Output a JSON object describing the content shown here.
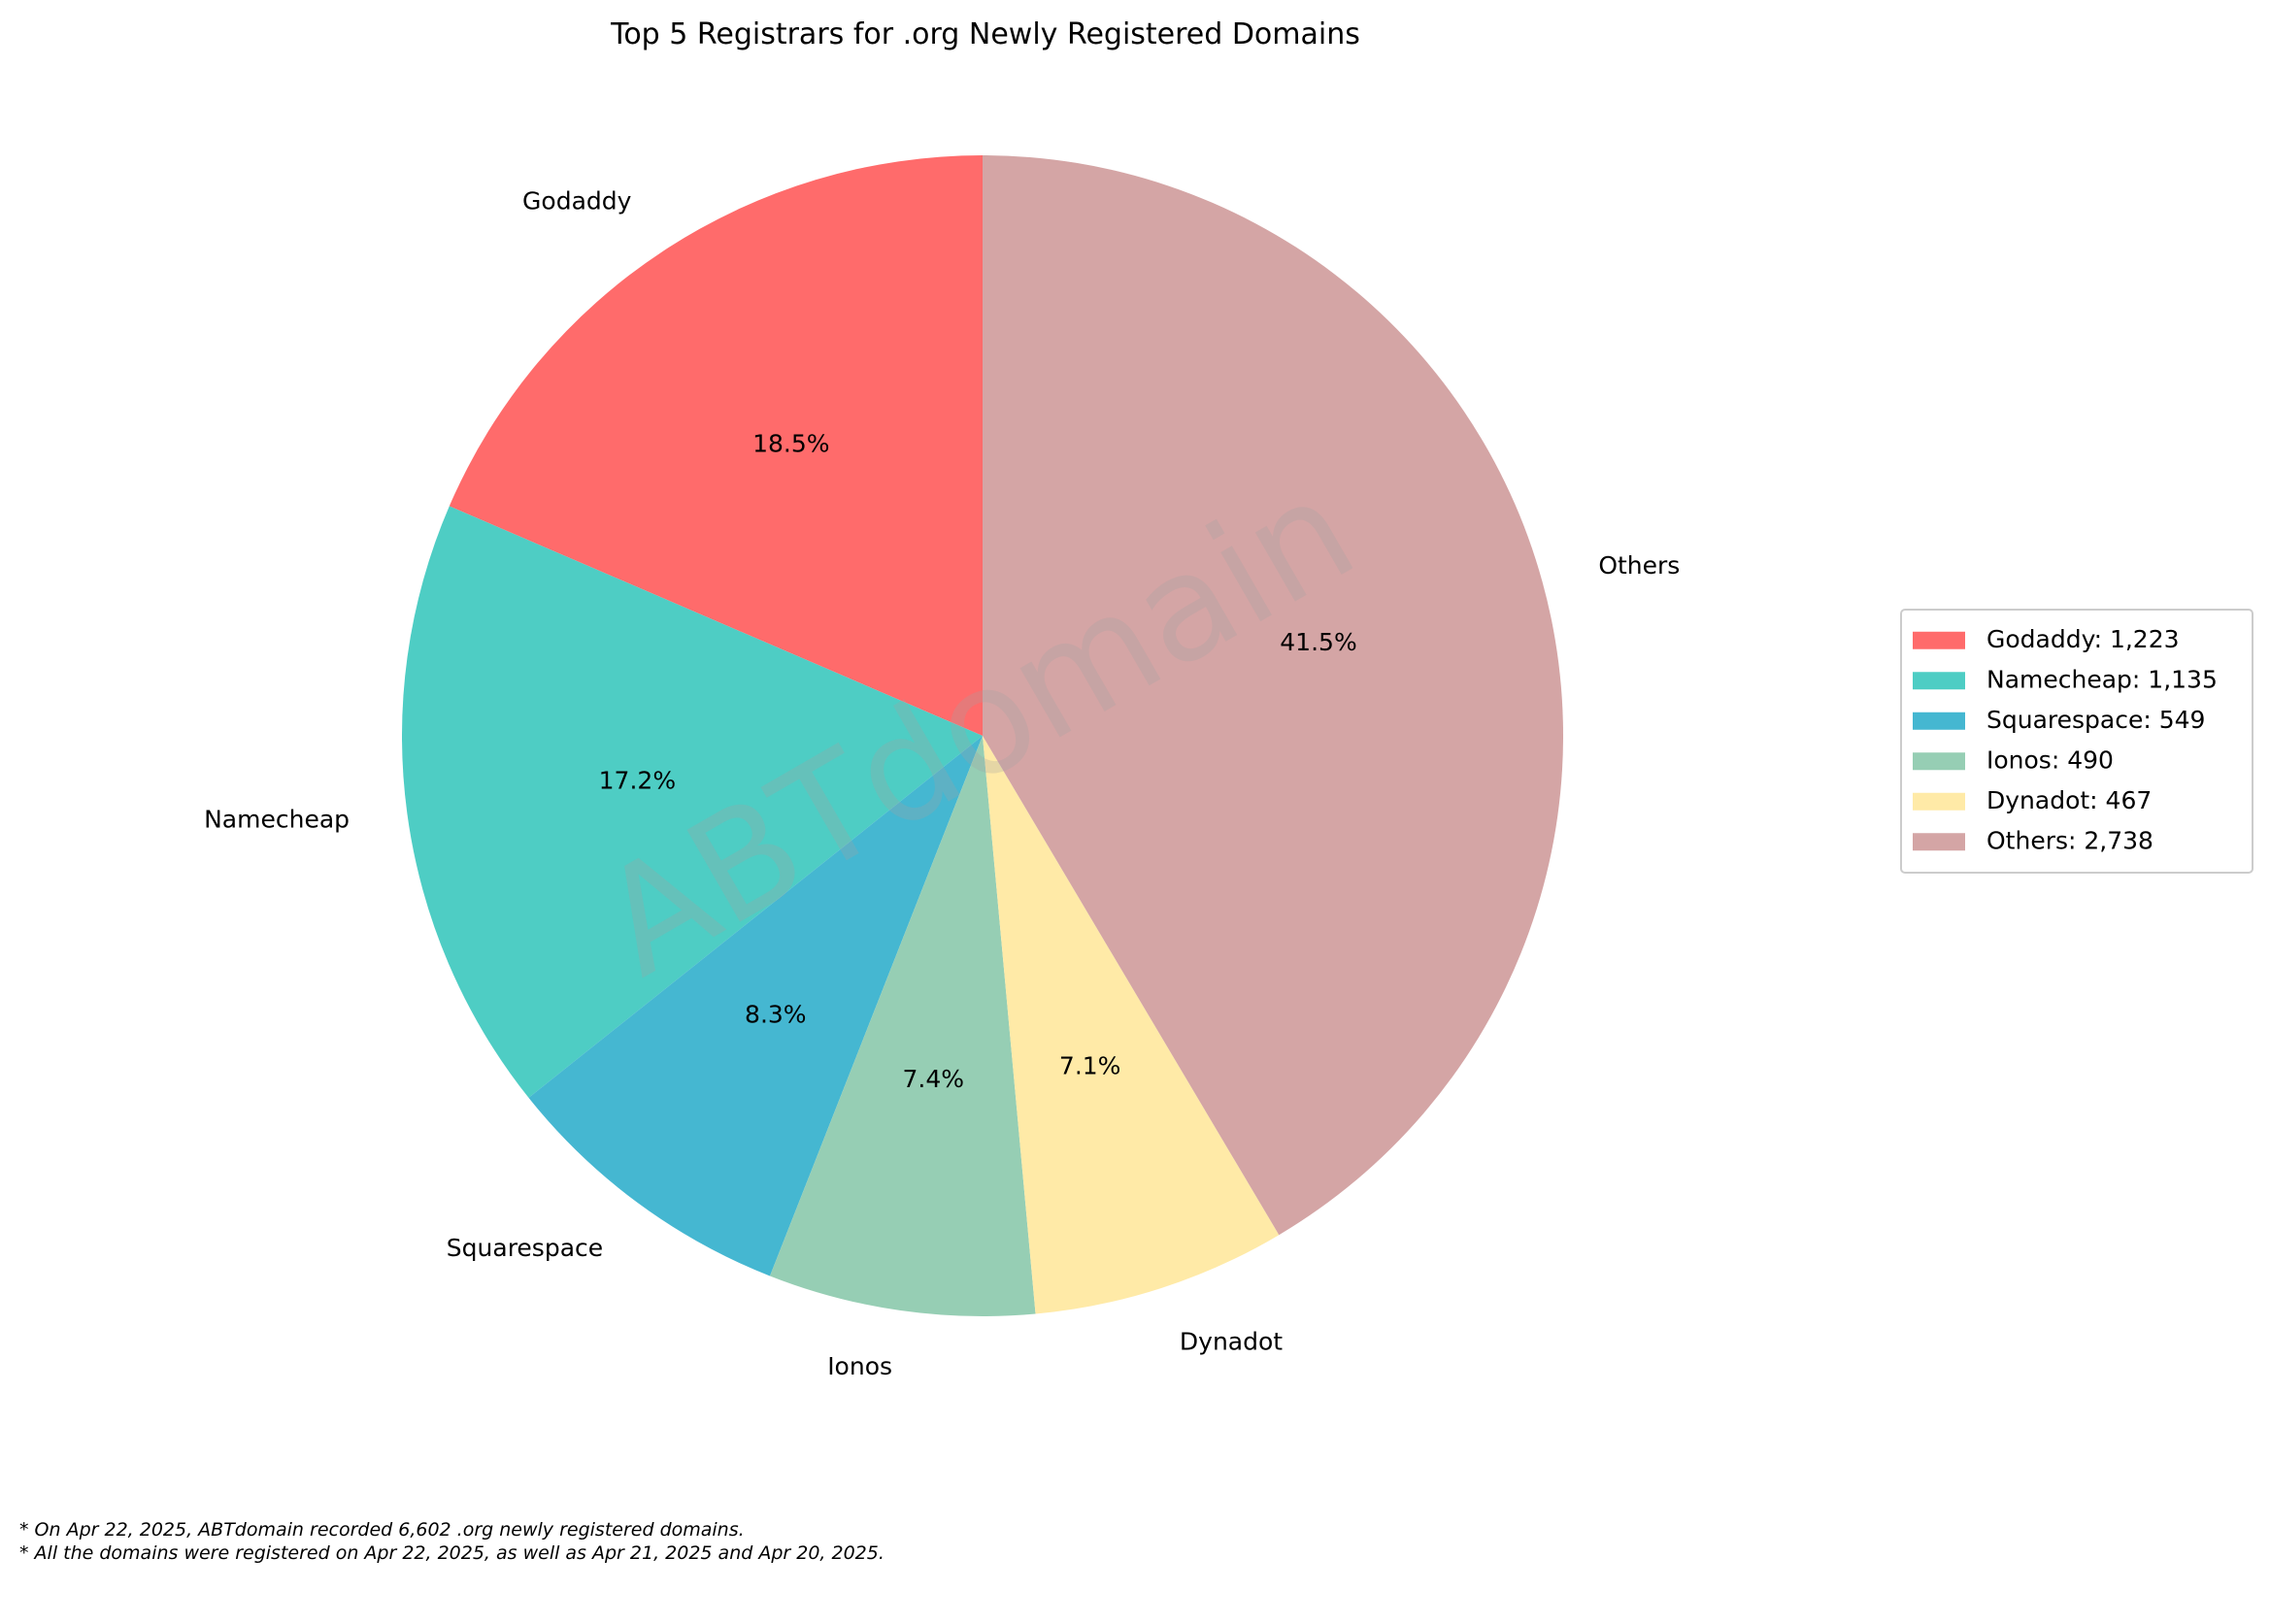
{
  "chart_data": {
    "type": "pie",
    "title": "Top 5 Registrars for .org Newly Registered Domains",
    "categories": [
      "Godaddy",
      "Namecheap",
      "Squarespace",
      "Ionos",
      "Dynadot",
      "Others"
    ],
    "values": [
      1223,
      1135,
      549,
      490,
      467,
      2738
    ],
    "percent_labels": [
      "18.5%",
      "17.2%",
      "8.3%",
      "7.4%",
      "7.1%",
      "41.5%"
    ],
    "legend_entries": [
      "Godaddy: 1,223",
      "Namecheap: 1,135",
      "Squarespace: 549",
      "Ionos: 490",
      "Dynadot: 467",
      "Others: 2,738"
    ],
    "colors": [
      "#ff6b6b",
      "#4ecdc4",
      "#45b7d1",
      "#96ceb4",
      "#ffeaa7",
      "#d4a5a5"
    ],
    "start_angle_deg": 90,
    "direction": "counterclockwise",
    "legend_position": "right",
    "watermark": "ABTdomain",
    "footnotes": [
      "* On Apr 22, 2025, ABTdomain recorded 6,602 .org newly registered domains.",
      "* All the domains were registered on Apr 22, 2025, as well as Apr 21, 2025 and Apr 20, 2025."
    ]
  }
}
